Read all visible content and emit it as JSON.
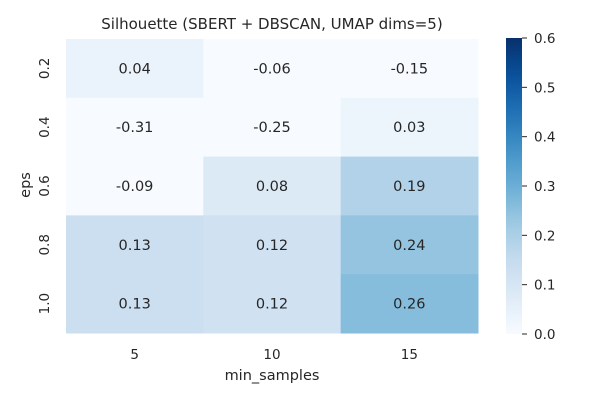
{
  "chart_data": {
    "type": "heatmap",
    "title": "Silhouette (SBERT + DBSCAN, UMAP dims=5)",
    "xlabel": "min_samples",
    "ylabel": "eps",
    "x_categories": [
      "5",
      "10",
      "15"
    ],
    "y_categories": [
      "0.2",
      "0.4",
      "0.6",
      "0.8",
      "1.0"
    ],
    "values": [
      [
        0.04,
        -0.06,
        -0.15
      ],
      [
        -0.31,
        -0.25,
        0.03
      ],
      [
        -0.09,
        0.08,
        0.19
      ],
      [
        0.13,
        0.12,
        0.24
      ],
      [
        0.13,
        0.12,
        0.26
      ]
    ],
    "cell_labels": [
      [
        "0.04",
        "-0.06",
        "-0.15"
      ],
      [
        "-0.31",
        "-0.25",
        "0.03"
      ],
      [
        "-0.09",
        "0.08",
        "0.19"
      ],
      [
        "0.13",
        "0.12",
        "0.24"
      ],
      [
        "0.13",
        "0.12",
        "0.26"
      ]
    ],
    "colorbar": {
      "vmin": 0.0,
      "vmax": 0.6,
      "ticks": [
        "0.0",
        "0.1",
        "0.2",
        "0.3",
        "0.4",
        "0.5",
        "0.6"
      ],
      "colormap": "Blues"
    },
    "colors": {
      "low": "#f7fbff",
      "high": "#08306b",
      "text": "#262626"
    }
  }
}
